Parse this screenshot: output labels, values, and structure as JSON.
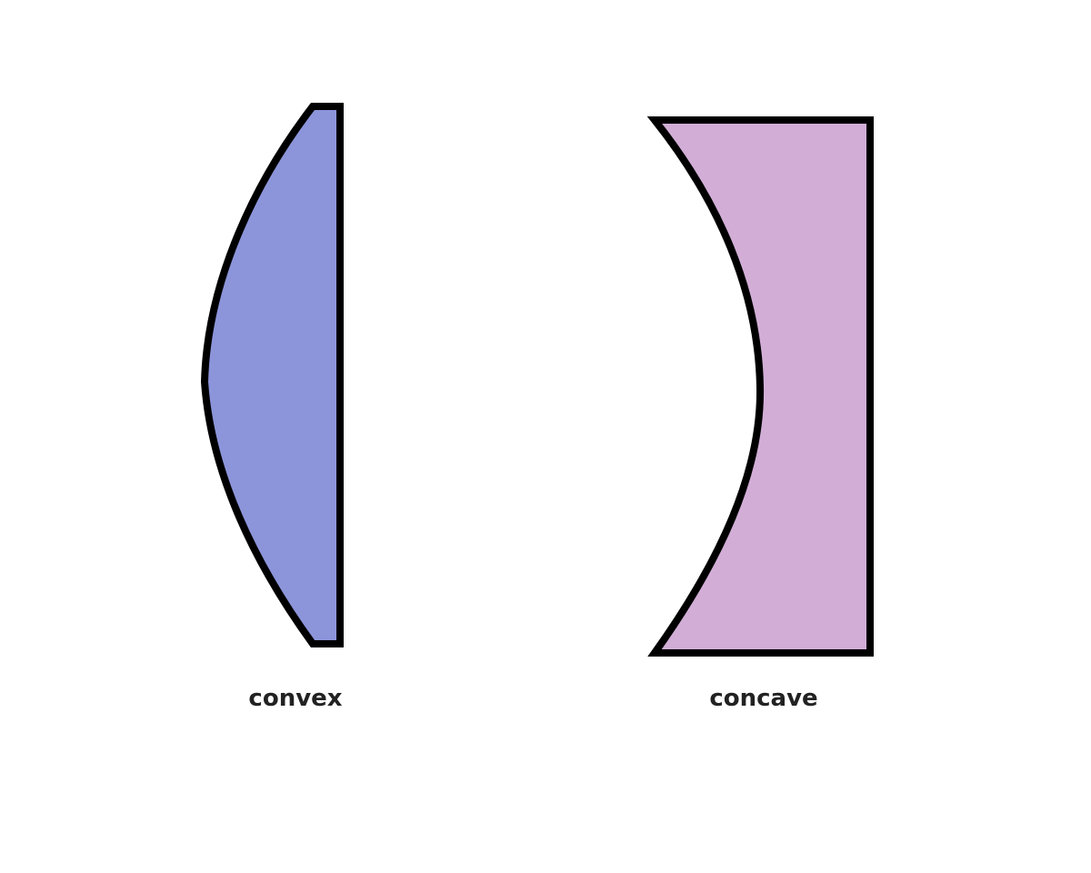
{
  "lenses": [
    {
      "label": "convex",
      "color": "#8c95da"
    },
    {
      "label": "concave",
      "color": "#d2aed7"
    }
  ]
}
